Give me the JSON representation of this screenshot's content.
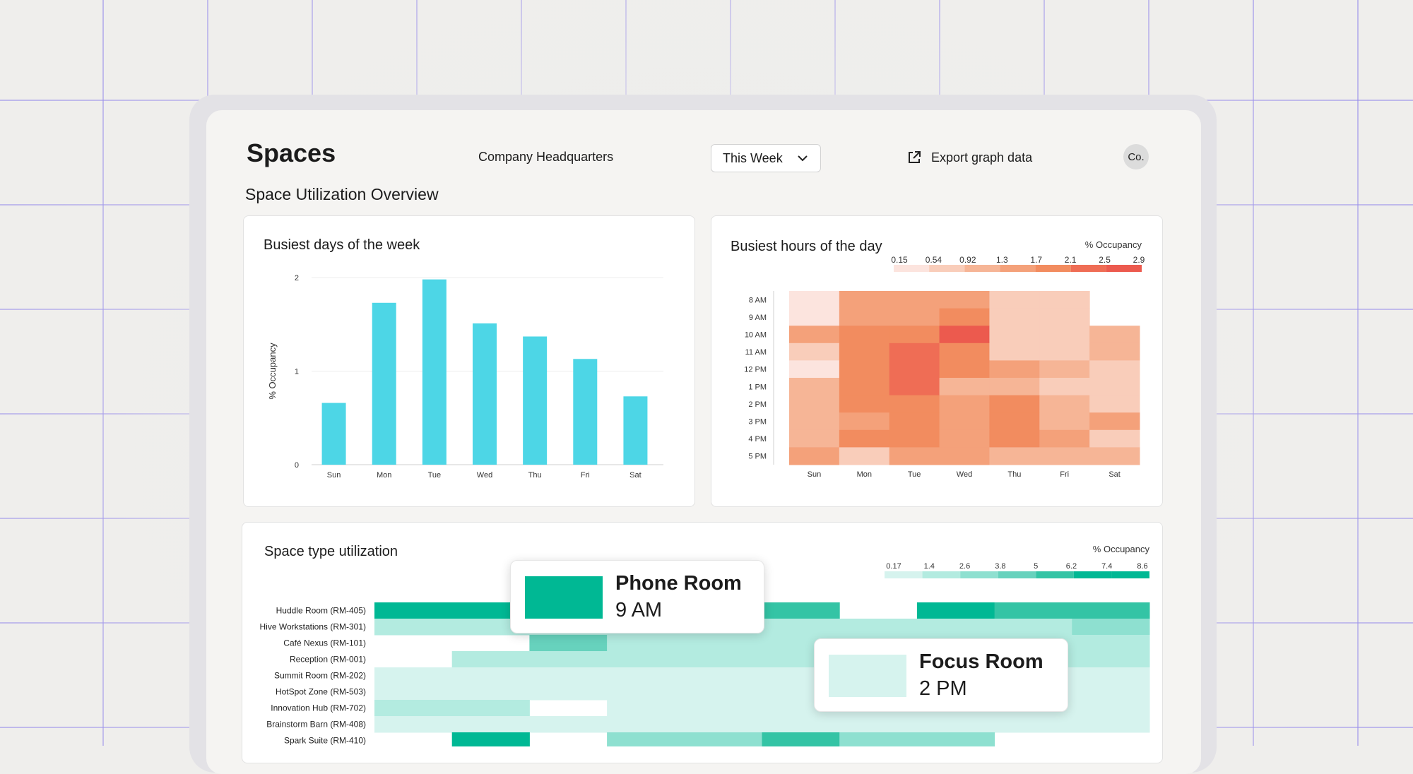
{
  "header": {
    "title": "Spaces",
    "location": "Company Headquarters",
    "period": "This Week",
    "export_label": "Export graph data",
    "avatar": "Co."
  },
  "section_title": "Space Utilization Overview",
  "icons": {
    "dropdown": "chevron-down-icon",
    "export": "external-link-icon"
  },
  "colors": {
    "bar": "#4dd6e6",
    "heat_scale": [
      "#fce4de",
      "#f9cdba",
      "#f6b596",
      "#f4a17a",
      "#f28c5f",
      "#ef6d55",
      "#ec5a4e"
    ],
    "teal_scale": [
      "#ffffff",
      "#d6f3ee",
      "#b3ebe0",
      "#8ee0d0",
      "#67d2bd",
      "#34c4a5",
      "#00b894"
    ]
  },
  "bar_card": {
    "title": "Busiest days of the week",
    "chart_data": {
      "type": "bar",
      "title": "Busiest days of the week",
      "categories": [
        "Sun",
        "Mon",
        "Tue",
        "Wed",
        "Thu",
        "Fri",
        "Sat"
      ],
      "values": [
        0.66,
        1.73,
        1.98,
        1.51,
        1.37,
        1.13,
        0.73
      ],
      "ylabel": "% Occupancy",
      "ylim": [
        0,
        2
      ],
      "yticks": [
        "0",
        "1",
        "2"
      ],
      "grid": true
    }
  },
  "hours_card": {
    "title": "Busiest hours of the day",
    "chart_data": {
      "type": "heatmap",
      "title": "Busiest hours of the day",
      "legend_title": "% Occupancy",
      "scale_labels": [
        "0.15",
        "0.54",
        "0.92",
        "1.3",
        "1.7",
        "2.1",
        "2.5",
        "2.9"
      ],
      "x": [
        "Sun",
        "Mon",
        "Tue",
        "Wed",
        "Thu",
        "Fri",
        "Sat"
      ],
      "y": [
        "8 AM",
        "9 AM",
        "10 AM",
        "11 AM",
        "12 PM",
        "1 PM",
        "2 PM",
        "3 PM",
        "4 PM",
        "5 PM"
      ],
      "levels": [
        [
          0,
          3,
          3,
          3,
          1,
          1,
          null
        ],
        [
          0,
          3,
          3,
          4,
          1,
          1,
          null
        ],
        [
          3,
          4,
          4,
          6,
          1,
          1,
          2
        ],
        [
          1,
          4,
          5,
          4,
          1,
          1,
          2
        ],
        [
          0,
          4,
          5,
          4,
          3,
          2,
          1
        ],
        [
          2,
          4,
          5,
          2,
          2,
          1,
          1
        ],
        [
          2,
          4,
          4,
          3,
          4,
          2,
          1
        ],
        [
          2,
          3,
          4,
          3,
          4,
          2,
          3
        ],
        [
          2,
          4,
          4,
          3,
          4,
          3,
          1
        ],
        [
          3,
          1,
          3,
          3,
          2,
          2,
          2
        ]
      ]
    }
  },
  "space_card": {
    "title": "Space type utilization",
    "chart_data": {
      "type": "heatmap",
      "title": "Space type utilization",
      "legend_title": "% Occupancy",
      "scale_labels": [
        "0.17",
        "1.4",
        "2.6",
        "3.8",
        "5",
        "6.2",
        "7.4",
        "8.6"
      ],
      "rows": [
        "Huddle Room (RM-405)",
        "Hive Workstations (RM-301)",
        "Café Nexus (RM-101)",
        "Reception (RM-001)",
        "Summit Room (RM-202)",
        "HotSpot Zone (RM-503)",
        "Innovation Hub (RM-702)",
        "Brainstorm Barn (RM-408)",
        "Spark Suite (RM-410)"
      ],
      "levels": [
        [
          6,
          6,
          6,
          6,
          6,
          5,
          0,
          6,
          5,
          5
        ],
        [
          2,
          2,
          2,
          2,
          2,
          2,
          2,
          2,
          2,
          3
        ],
        [
          0,
          0,
          4,
          2,
          2,
          2,
          2,
          2,
          2,
          2
        ],
        [
          0,
          2,
          2,
          2,
          2,
          2,
          2,
          2,
          2,
          2
        ],
        [
          1,
          1,
          1,
          1,
          1,
          1,
          1,
          1,
          1,
          1
        ],
        [
          1,
          1,
          1,
          1,
          1,
          1,
          1,
          1,
          1,
          1
        ],
        [
          2,
          2,
          0,
          1,
          1,
          1,
          1,
          1,
          1,
          1
        ],
        [
          1,
          1,
          1,
          1,
          1,
          1,
          1,
          1,
          1,
          1
        ],
        [
          0,
          6,
          0,
          3,
          3,
          5,
          3,
          3,
          0,
          0
        ]
      ]
    }
  },
  "tooltips": [
    {
      "title": "Phone Room",
      "sub": "9 AM",
      "swatch": "#00b894"
    },
    {
      "title": "Focus Room",
      "sub": "2 PM",
      "swatch": "#d6f3ee"
    }
  ]
}
